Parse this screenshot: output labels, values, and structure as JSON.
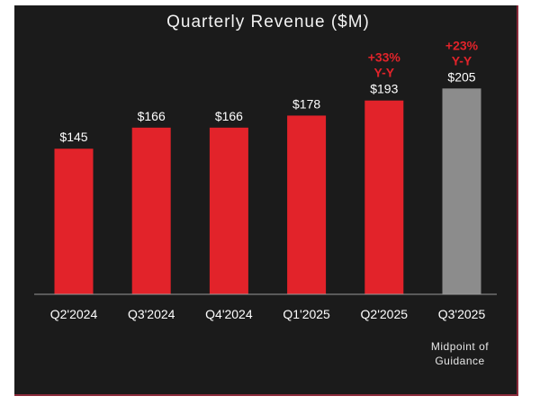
{
  "chart_data": {
    "type": "bar",
    "title": "Quarterly Revenue ($M)",
    "xlabel": "",
    "ylabel": "",
    "categories": [
      "Q2'2024",
      "Q3'2024",
      "Q4'2024",
      "Q1'2025",
      "Q2'2025",
      "Q3'2025"
    ],
    "values": [
      145,
      166,
      166,
      178,
      193,
      205
    ],
    "value_labels": [
      "$145",
      "$166",
      "$166",
      "$178",
      "$193",
      "$205"
    ],
    "bar_colors": [
      "#e2232a",
      "#e2232a",
      "#e2232a",
      "#e2232a",
      "#e2232a",
      "#8c8c8c"
    ],
    "ylim": [
      0,
      225
    ],
    "grid": false,
    "annotations": [
      {
        "category": "Q2'2025",
        "lines": [
          "+33%",
          "Y-Y"
        ]
      },
      {
        "category": "Q3'2025",
        "lines": [
          "+23%",
          "Y-Y"
        ]
      }
    ],
    "footnote": {
      "category": "Q3'2025",
      "lines": [
        "Midpoint of",
        "Guidance"
      ]
    }
  },
  "colors": {
    "background": "#1b1b1b",
    "bar": "#e2232a",
    "guidance_bar": "#8c8c8c",
    "annotation": "#e2232a",
    "axis": "#9a9a9a",
    "text": "#ffffff"
  }
}
